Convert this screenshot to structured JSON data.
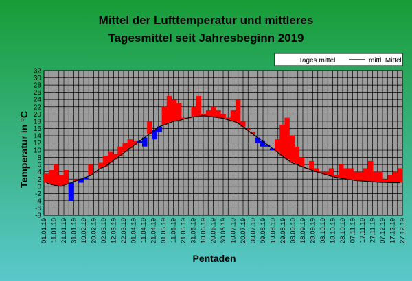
{
  "colors": {
    "background_top": "#179c36",
    "background_bottom": "#5ac8cc",
    "plot_area": "#9c9c9c",
    "gridline": "#000000",
    "above_mean": "#ff0000",
    "below_mean": "#0000ff",
    "mean_line": "#000000"
  },
  "chart_data": {
    "type": "area",
    "title_line1": "Mittel der Lufttemperatur und mittleres",
    "title_line2": "Tagesmittel seit Jahresbeginn 2019",
    "ylabel": "Temperatur in °C",
    "xlabel": "Pentaden",
    "ylim": [
      -8,
      32
    ],
    "y_ticks": [
      "-8",
      "-6",
      "-4",
      "-2",
      "0",
      "2",
      "4",
      "6",
      "8",
      "10",
      "12",
      "14",
      "16",
      "18",
      "20",
      "22",
      "24",
      "26",
      "28",
      "30",
      "32"
    ],
    "x_ticks": [
      "01.01.19",
      "11.01.19",
      "21.01.19",
      "31.01.19",
      "10.02.19",
      "20.02.19",
      "02.03.19",
      "12.03.19",
      "22.03.19",
      "01.04.19",
      "11.04.19",
      "21.04.19",
      "01.05.19",
      "11.05.19",
      "21.05.19",
      "31.05.19",
      "10.06.19",
      "20.06.19",
      "30.06.19",
      "10.07.19",
      "20.07.19",
      "30.07.19",
      "09.08.19",
      "19.08.19",
      "29.08.19",
      "08.09.19",
      "18.09.19",
      "28.09.19",
      "08.10.19",
      "18.10.19",
      "28.10.19",
      "07.11.19",
      "17.11.19",
      "27.11.19",
      "07.12.19",
      "17.12.19",
      "27.12.19"
    ],
    "grid": true,
    "legend_position": "top-right",
    "legend": {
      "series1": "Tages mittel",
      "series2": "mittl. Mittel"
    },
    "series": [
      {
        "name": "Tages mittel",
        "values": [
          3.5,
          4.5,
          6,
          3,
          4.5,
          -4,
          2,
          1,
          2,
          6,
          4,
          6.5,
          8.5,
          9.5,
          9,
          11,
          12,
          13,
          12.5,
          12,
          11,
          18,
          13,
          15,
          22,
          25,
          24,
          23,
          19,
          19,
          22,
          25,
          20,
          21,
          22,
          21,
          20,
          19,
          21,
          24,
          18,
          16,
          15,
          12,
          11,
          11,
          10,
          13,
          17,
          19,
          14,
          11,
          8,
          5,
          7,
          5,
          4,
          4,
          5,
          3,
          6,
          5,
          5,
          4,
          4,
          5,
          7,
          4,
          4,
          2,
          3,
          4,
          5
        ],
        "fill_note": "red above mean, blue below mean"
      },
      {
        "name": "mittl. Mittel",
        "values": [
          1,
          0.5,
          0.2,
          0,
          0.5,
          1,
          1.5,
          2,
          2.5,
          3,
          4,
          5,
          5.5,
          6.5,
          7.5,
          8.5,
          9.5,
          10.5,
          11.5,
          12.5,
          13.5,
          14.5,
          15.5,
          16.5,
          17,
          17.5,
          18,
          18.2,
          18.6,
          19,
          19.2,
          19.4,
          19.5,
          19.4,
          19.2,
          19,
          18.8,
          18.4,
          18,
          17.5,
          16.5,
          15.5,
          14.5,
          13.5,
          12.5,
          11.5,
          10.5,
          9.5,
          8.5,
          7.5,
          6.5,
          6,
          5.5,
          5,
          4.5,
          4,
          3.6,
          3.2,
          2.8,
          2.5,
          2.2,
          2,
          1.8,
          1.6,
          1.5,
          1.4,
          1.3,
          1.2,
          1.1,
          1.1,
          1,
          1,
          1
        ]
      }
    ]
  }
}
